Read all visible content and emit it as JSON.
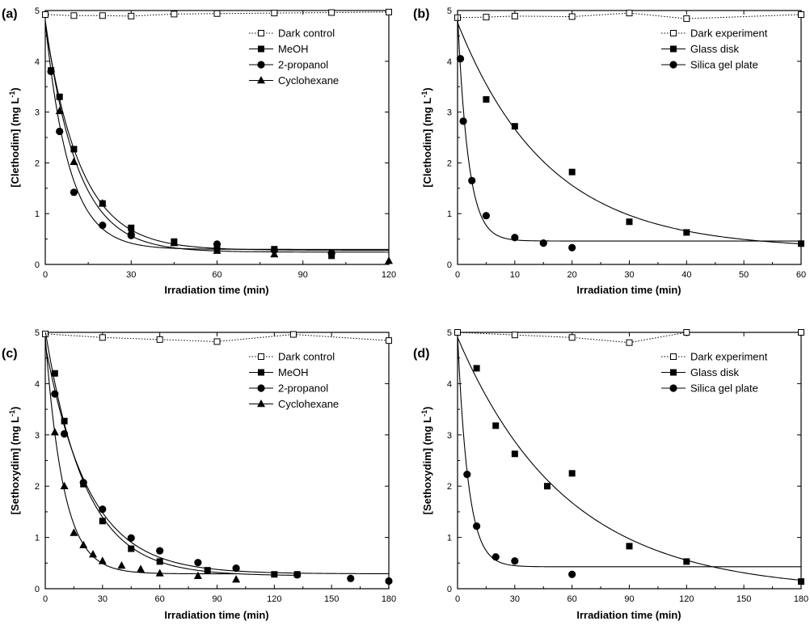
{
  "chart_data": [
    {
      "type": "scatter",
      "panel_label": "(a)",
      "xlabel": "Irradiation time (min)",
      "ylabel": "[Clethodim] (mg L",
      "ylabel_sup": "-1",
      "ylabel_end": ")",
      "xlim": [
        0,
        120
      ],
      "ylim": [
        0,
        5
      ],
      "xticks": [
        0,
        30,
        60,
        90,
        120
      ],
      "yticks": [
        0,
        1,
        2,
        3,
        4,
        5
      ],
      "grid": false,
      "legend_position": "top-right",
      "series": [
        {
          "name": "Dark control",
          "marker": "open-square",
          "line": "dotted",
          "fit": "none",
          "x": [
            0,
            10,
            20,
            30,
            45,
            60,
            80,
            100,
            120
          ],
          "y": [
            4.92,
            4.9,
            4.9,
            4.89,
            4.93,
            4.94,
            4.95,
            4.96,
            4.97
          ]
        },
        {
          "name": "MeOH",
          "marker": "filled-square",
          "line": "solid",
          "fit": "exponential",
          "x": [
            0,
            2,
            5,
            10,
            20,
            30,
            45,
            60,
            80,
            100
          ],
          "y": [
            4.9,
            3.82,
            3.3,
            2.27,
            1.2,
            0.72,
            0.45,
            0.33,
            0.3,
            0.17
          ]
        },
        {
          "name": "2-propanol",
          "marker": "filled-circle",
          "line": "solid",
          "fit": "exponential",
          "x": [
            0,
            2,
            5,
            10,
            20,
            30,
            60,
            80,
            100
          ],
          "y": [
            4.9,
            3.8,
            2.62,
            1.42,
            0.77,
            0.57,
            0.4,
            0.28,
            0.22
          ]
        },
        {
          "name": "Cyclohexane",
          "marker": "filled-triangle",
          "line": "solid",
          "fit": "exponential",
          "x": [
            0,
            5,
            10,
            20,
            30,
            45,
            60,
            80,
            120
          ],
          "y": [
            4.9,
            3.02,
            2.02,
            1.2,
            0.65,
            0.42,
            0.27,
            0.2,
            0.07
          ]
        }
      ]
    },
    {
      "type": "scatter",
      "panel_label": "(b)",
      "xlabel": "Irradiation time (min)",
      "ylabel": "[Clethodim] (mg L",
      "ylabel_sup": "-1",
      "ylabel_end": ")",
      "xlim": [
        0,
        60
      ],
      "ylim": [
        0,
        5
      ],
      "xticks": [
        0,
        10,
        20,
        30,
        40,
        50,
        60
      ],
      "yticks": [
        0,
        1,
        2,
        3,
        4,
        5
      ],
      "grid": false,
      "legend_position": "top-right",
      "series": [
        {
          "name": "Dark experiment",
          "marker": "open-square",
          "line": "dotted",
          "fit": "none",
          "x": [
            0,
            5,
            10,
            20,
            30,
            40,
            60
          ],
          "y": [
            4.86,
            4.87,
            4.89,
            4.88,
            4.95,
            4.84,
            4.92
          ]
        },
        {
          "name": "Glass disk",
          "marker": "filled-square",
          "line": "solid",
          "fit": "exponential",
          "x": [
            0,
            5,
            10,
            20,
            30,
            40,
            60
          ],
          "y": [
            4.9,
            3.25,
            2.72,
            1.82,
            0.84,
            0.63,
            0.41
          ]
        },
        {
          "name": "Silica gel plate",
          "marker": "filled-circle",
          "line": "solid",
          "fit": "exponential",
          "x": [
            0,
            0.5,
            1,
            2.5,
            5,
            10,
            15,
            20
          ],
          "y": [
            4.9,
            4.05,
            2.82,
            1.65,
            0.96,
            0.53,
            0.42,
            0.33
          ]
        }
      ]
    },
    {
      "type": "scatter",
      "panel_label": "(c)",
      "xlabel": "Irradiation time (min)",
      "ylabel": "[Sethoxydim] (mg L",
      "ylabel_sup": "-1",
      "ylabel_end": ")",
      "xlim": [
        0,
        180
      ],
      "ylim": [
        0,
        5
      ],
      "xticks": [
        0,
        30,
        60,
        90,
        120,
        150,
        180
      ],
      "yticks": [
        0,
        1,
        2,
        3,
        4,
        5
      ],
      "grid": false,
      "legend_position": "top-right",
      "series": [
        {
          "name": "Dark control",
          "marker": "open-square",
          "line": "dotted",
          "fit": "none",
          "x": [
            0,
            30,
            60,
            90,
            130,
            180
          ],
          "y": [
            4.97,
            4.9,
            4.86,
            4.82,
            4.96,
            4.84
          ]
        },
        {
          "name": "MeOH",
          "marker": "filled-square",
          "line": "solid",
          "fit": "exponential",
          "x": [
            0,
            5,
            10,
            20,
            30,
            45,
            60,
            85,
            120,
            132
          ],
          "y": [
            4.9,
            4.2,
            3.27,
            2.04,
            1.32,
            0.78,
            0.53,
            0.36,
            0.28,
            0.28
          ]
        },
        {
          "name": "2-propanol",
          "marker": "filled-circle",
          "line": "solid",
          "fit": "exponential",
          "x": [
            0,
            5,
            10,
            20,
            30,
            45,
            60,
            80,
            100,
            132,
            160,
            180
          ],
          "y": [
            4.9,
            3.8,
            3.02,
            2.07,
            1.55,
            0.99,
            0.74,
            0.51,
            0.4,
            0.27,
            0.2,
            0.15
          ]
        },
        {
          "name": "Cyclohexane",
          "marker": "filled-triangle",
          "line": "solid",
          "fit": "exponential",
          "x": [
            0,
            5,
            10,
            15,
            20,
            25,
            30,
            40,
            50,
            60,
            80,
            100
          ],
          "y": [
            4.9,
            3.05,
            2.0,
            1.09,
            0.85,
            0.67,
            0.54,
            0.45,
            0.38,
            0.3,
            0.25,
            0.18
          ]
        }
      ]
    },
    {
      "type": "scatter",
      "panel_label": "(d)",
      "xlabel": "Irradiation time (min)",
      "ylabel": "[Sethoxydim] (mg L",
      "ylabel_sup": "-1",
      "ylabel_end": ")",
      "xlim": [
        0,
        180
      ],
      "ylim": [
        0,
        5
      ],
      "xticks": [
        0,
        30,
        60,
        90,
        120,
        150,
        180
      ],
      "yticks": [
        0,
        1,
        2,
        3,
        4,
        5
      ],
      "grid": false,
      "legend_position": "top-right",
      "series": [
        {
          "name": "Dark experiment",
          "marker": "open-square",
          "line": "dotted",
          "fit": "none",
          "x": [
            0,
            30,
            60,
            90,
            120,
            180
          ],
          "y": [
            5.0,
            4.95,
            4.9,
            4.8,
            5.0,
            5.0
          ]
        },
        {
          "name": "Glass disk",
          "marker": "filled-square",
          "line": "solid",
          "fit": "exponential",
          "x": [
            0,
            10,
            20,
            30,
            47,
            60,
            90,
            120,
            180
          ],
          "y": [
            4.95,
            4.3,
            3.18,
            2.63,
            2.0,
            2.25,
            0.83,
            0.53,
            0.14
          ]
        },
        {
          "name": "Silica gel plate",
          "marker": "filled-circle",
          "line": "solid",
          "fit": "exponential",
          "x": [
            0,
            5,
            10,
            20,
            30,
            60
          ],
          "y": [
            4.95,
            2.23,
            1.22,
            0.62,
            0.54,
            0.28
          ]
        }
      ]
    }
  ]
}
